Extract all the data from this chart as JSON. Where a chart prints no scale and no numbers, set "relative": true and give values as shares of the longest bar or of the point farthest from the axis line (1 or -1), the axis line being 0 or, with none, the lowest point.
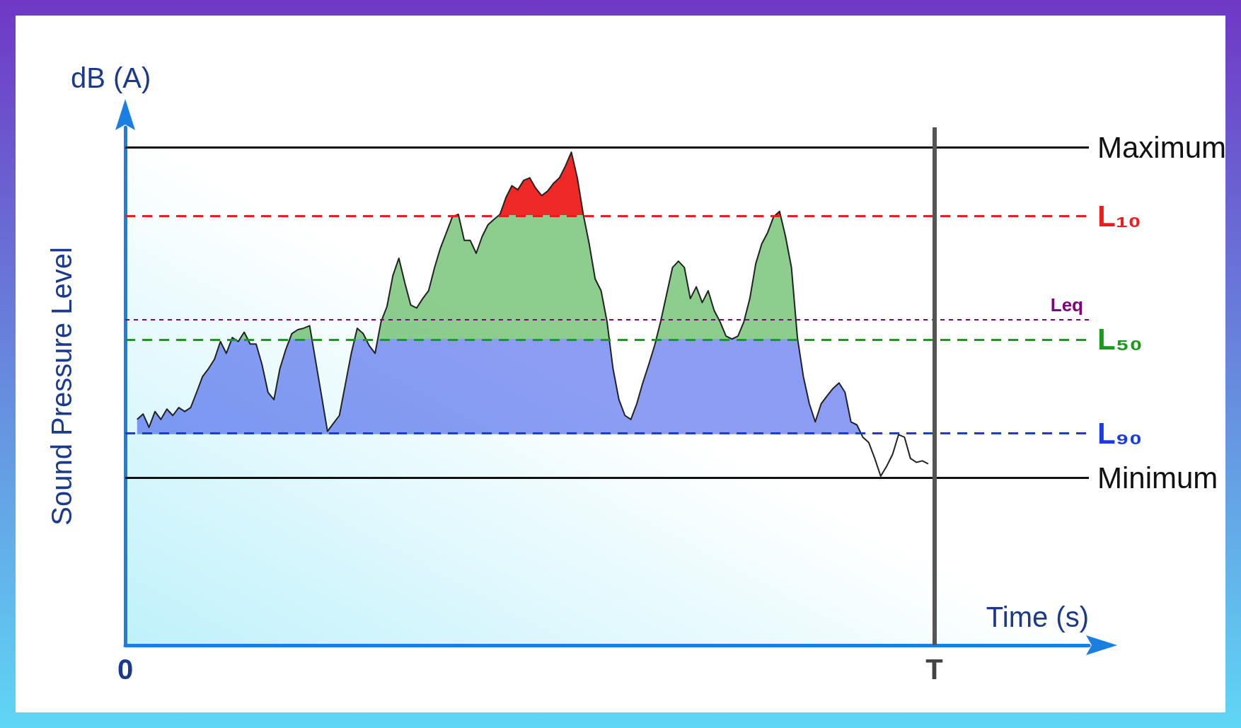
{
  "chart_data": {
    "type": "line",
    "relative": true,
    "xlabel": "Time (s)",
    "ylabel": "Sound Pressure Level",
    "annotations": [
      "dB (A)"
    ],
    "categories": [
      "0",
      null,
      null,
      null,
      null,
      null,
      null,
      null,
      null,
      null,
      null,
      null,
      null,
      null,
      null,
      null,
      null,
      null,
      null,
      null,
      null,
      null,
      null,
      null,
      null,
      null,
      null,
      null,
      null,
      null,
      null,
      null,
      null,
      null,
      null,
      null,
      null,
      null,
      null,
      null,
      null,
      null,
      null,
      null,
      null,
      null,
      null,
      null,
      null,
      null,
      null,
      null,
      null,
      null,
      null,
      null,
      null,
      null,
      null,
      null,
      null,
      null,
      null,
      null,
      null,
      null,
      null,
      null,
      null,
      null,
      null,
      null,
      null,
      null,
      null,
      null,
      null,
      null,
      null,
      null,
      null,
      null,
      null,
      null,
      null,
      null,
      null,
      null,
      null,
      null,
      null,
      null,
      null,
      null,
      null,
      null,
      null,
      null,
      null,
      null,
      null,
      null,
      null,
      null,
      null,
      null,
      null,
      null,
      null,
      null,
      null,
      null,
      null,
      null,
      null,
      null,
      null,
      null,
      null,
      null,
      null,
      null,
      null,
      null,
      null,
      null,
      null,
      null,
      null,
      null,
      null,
      null,
      null,
      null,
      null,
      null,
      "T"
    ],
    "grid": false,
    "marker": "none",
    "line_style": "solid",
    "series": [
      {
        "color": "#222222",
        "values": [
          null,
          null,
          0.458,
          0.469,
          0.442,
          0.474,
          0.458,
          0.479,
          0.466,
          0.482,
          0.474,
          0.482,
          0.513,
          0.545,
          0.561,
          0.58,
          0.616,
          0.592,
          0.624,
          0.616,
          0.635,
          0.611,
          0.611,
          0.569,
          0.513,
          0.498,
          0.561,
          0.6,
          0.632,
          0.64,
          0.643,
          0.648,
          0.577,
          0.506,
          0.434,
          0.45,
          0.466,
          0.529,
          0.592,
          0.643,
          0.632,
          0.608,
          0.592,
          0.656,
          0.687,
          0.75,
          0.785,
          0.735,
          0.69,
          0.684,
          0.703,
          0.719,
          0.766,
          0.806,
          0.837,
          0.869,
          0.874,
          0.821,
          0.821,
          0.795,
          0.829,
          0.853,
          0.864,
          0.874,
          0.908,
          0.932,
          0.924,
          0.943,
          0.948,
          0.927,
          0.912,
          0.921,
          0.937,
          0.948,
          0.972,
          1,
          0.948,
          0.874,
          0.814,
          0.743,
          0.719,
          0.656,
          0.561,
          0.498,
          0.466,
          0.458,
          0.49,
          0.532,
          0.569,
          0.608,
          0.656,
          0.711,
          0.766,
          0.779,
          0.766,
          0.703,
          0.727,
          0.695,
          0.719,
          0.679,
          0.656,
          0.627,
          0.621,
          0.627,
          0.656,
          0.703,
          0.774,
          0.814,
          0.837,
          0.869,
          0.88,
          0.829,
          0.766,
          0.624,
          0.545,
          0.49,
          0.453,
          0.49,
          0.506,
          0.521,
          0.532,
          0.513,
          0.453,
          0.447,
          0.422,
          0.411,
          0.379,
          0.343,
          0.363,
          0.387,
          0.427,
          0.422,
          0.379,
          0.371,
          0.374,
          0.368,
          null
        ]
      }
    ],
    "ref_lines": [
      {
        "axis": "y",
        "value": 1.01,
        "label": "Maximum",
        "color": "#111111",
        "line_style": "solid"
      },
      {
        "axis": "y",
        "value": 0.872,
        "label": "L₁₀",
        "color": "#ee1c1c",
        "line_style": "dashed"
      },
      {
        "axis": "y",
        "value": 0.662,
        "label": "Leq",
        "color": "#800080",
        "line_style": "dotted"
      },
      {
        "axis": "y",
        "value": 0.621,
        "label": "L₅₀",
        "color": "#1a9a1a",
        "line_style": "dashed"
      },
      {
        "axis": "y",
        "value": 0.428,
        "label": "L₉₀",
        "color": "#1a3ae6",
        "line_style": "dashed"
      },
      {
        "axis": "y",
        "value": 0.341,
        "label": "Minimum",
        "color": "#111111",
        "line_style": "solid"
      },
      {
        "axis": "x",
        "value": "T",
        "color": "#555555",
        "line_style": "solid"
      }
    ]
  }
}
